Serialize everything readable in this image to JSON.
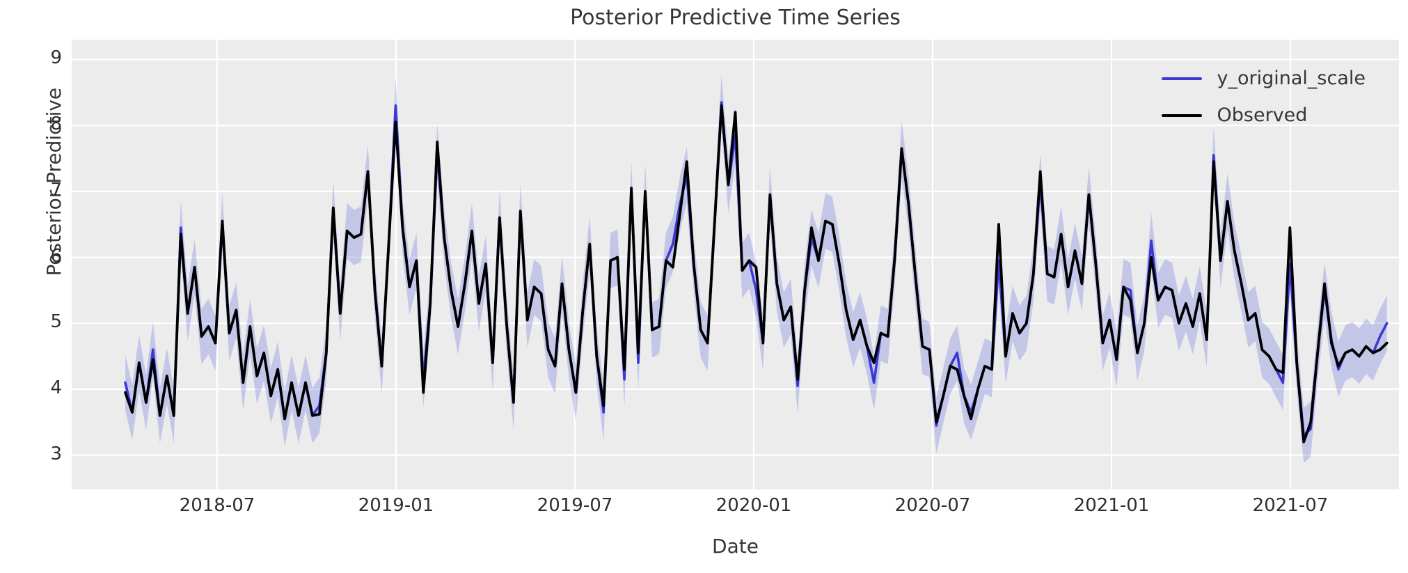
{
  "chart_data": {
    "type": "line",
    "title": "Posterior Predictive Time Series",
    "xlabel": "Date",
    "ylabel": "Posterior Predictive",
    "x_start": "2018-04-01",
    "x_step_days": 7,
    "n_points": 183,
    "ylim": [
      2.48,
      9.3
    ],
    "grid": true,
    "legend_position": "upper right",
    "background_color": "#ececec",
    "grid_color": "#ffffff",
    "ytick_labels": [
      "9",
      "8",
      "7",
      "6",
      "5",
      "4",
      "3"
    ],
    "ytick_values": [
      9,
      8,
      7,
      6,
      5,
      4,
      3
    ],
    "xtick_labels": [
      "2018-07",
      "2019-01",
      "2019-07",
      "2020-01",
      "2020-07",
      "2021-01",
      "2021-07"
    ],
    "band": {
      "around_series": "y_original_scale",
      "halfwidth": 0.42,
      "color": "#5a61dc",
      "opacity": 0.27
    },
    "series": [
      {
        "name": "y_original_scale",
        "color": "#3a3ad3",
        "values": [
          4.1,
          3.65,
          4.4,
          3.8,
          4.6,
          3.6,
          4.2,
          3.6,
          6.45,
          5.15,
          5.85,
          4.8,
          4.95,
          4.7,
          6.55,
          4.85,
          5.2,
          4.1,
          4.95,
          4.2,
          4.55,
          3.9,
          4.3,
          3.55,
          4.1,
          3.6,
          4.1,
          3.6,
          3.75,
          4.55,
          6.75,
          5.15,
          6.4,
          6.3,
          6.35,
          7.3,
          5.5,
          4.35,
          6.2,
          8.3,
          6.45,
          5.55,
          5.95,
          4.15,
          5.3,
          7.6,
          6.3,
          5.5,
          4.95,
          5.6,
          6.4,
          5.3,
          5.9,
          4.4,
          6.6,
          5.0,
          3.8,
          6.7,
          5.05,
          5.55,
          5.45,
          4.6,
          4.35,
          5.6,
          4.6,
          3.95,
          5.2,
          6.2,
          4.5,
          3.65,
          5.95,
          6.0,
          4.15,
          7.05,
          4.4,
          7.0,
          4.9,
          4.95,
          5.95,
          6.2,
          6.8,
          7.25,
          5.9,
          4.9,
          4.7,
          6.5,
          8.35,
          7.1,
          7.85,
          5.8,
          5.95,
          5.5,
          4.7,
          6.95,
          5.6,
          5.05,
          5.25,
          4.05,
          5.5,
          6.3,
          5.95,
          6.55,
          6.5,
          5.9,
          5.2,
          4.75,
          5.05,
          4.65,
          4.1,
          4.85,
          4.8,
          6.0,
          7.65,
          6.8,
          5.7,
          4.65,
          4.6,
          3.45,
          3.9,
          4.35,
          4.55,
          3.9,
          3.65,
          4.0,
          4.35,
          4.3,
          5.95,
          4.5,
          5.15,
          4.85,
          5.0,
          5.75,
          7.15,
          5.75,
          5.7,
          6.35,
          5.55,
          6.1,
          5.6,
          6.95,
          5.9,
          4.7,
          5.05,
          4.45,
          5.55,
          5.5,
          4.55,
          5.0,
          6.25,
          5.35,
          5.55,
          5.5,
          5.0,
          5.3,
          4.95,
          5.45,
          4.75,
          7.55,
          5.95,
          6.85,
          6.1,
          5.6,
          5.05,
          5.15,
          4.6,
          4.5,
          4.3,
          4.1,
          5.9,
          4.4,
          3.3,
          3.4,
          4.55,
          5.5,
          4.75,
          4.3,
          4.55,
          4.6,
          4.5,
          4.65,
          4.55,
          4.8,
          5.0
        ]
      },
      {
        "name": "Observed",
        "color": "#000000",
        "values": [
          3.95,
          3.65,
          4.4,
          3.8,
          4.45,
          3.6,
          4.2,
          3.6,
          6.35,
          5.15,
          5.85,
          4.8,
          4.95,
          4.7,
          6.55,
          4.85,
          5.2,
          4.1,
          4.95,
          4.2,
          4.55,
          3.9,
          4.3,
          3.55,
          4.1,
          3.6,
          4.1,
          3.6,
          3.62,
          4.55,
          6.75,
          5.15,
          6.4,
          6.3,
          6.35,
          7.3,
          5.5,
          4.35,
          6.2,
          8.05,
          6.45,
          5.55,
          5.95,
          3.95,
          5.3,
          7.75,
          6.3,
          5.5,
          4.95,
          5.6,
          6.4,
          5.3,
          5.9,
          4.4,
          6.6,
          5.0,
          3.8,
          6.7,
          5.05,
          5.55,
          5.45,
          4.6,
          4.35,
          5.6,
          4.6,
          3.95,
          5.2,
          6.2,
          4.5,
          3.75,
          5.95,
          6.0,
          4.3,
          7.05,
          4.55,
          7.0,
          4.9,
          4.95,
          5.95,
          5.85,
          6.65,
          7.45,
          5.9,
          4.9,
          4.7,
          6.5,
          8.3,
          7.1,
          8.2,
          5.8,
          5.95,
          5.85,
          4.7,
          6.95,
          5.6,
          5.05,
          5.25,
          4.15,
          5.5,
          6.45,
          5.95,
          6.55,
          6.5,
          5.9,
          5.2,
          4.75,
          5.05,
          4.65,
          4.4,
          4.85,
          4.8,
          6.0,
          7.65,
          6.8,
          5.7,
          4.65,
          4.6,
          3.5,
          3.9,
          4.35,
          4.3,
          3.9,
          3.55,
          4.0,
          4.35,
          4.3,
          6.5,
          4.5,
          5.15,
          4.85,
          5.0,
          5.75,
          7.3,
          5.75,
          5.7,
          6.35,
          5.55,
          6.1,
          5.6,
          6.95,
          5.9,
          4.7,
          5.05,
          4.45,
          5.55,
          5.35,
          4.55,
          5.0,
          6.0,
          5.35,
          5.55,
          5.5,
          5.0,
          5.3,
          4.95,
          5.45,
          4.75,
          7.45,
          5.95,
          6.85,
          6.1,
          5.6,
          5.05,
          5.15,
          4.6,
          4.5,
          4.3,
          4.25,
          6.45,
          4.4,
          3.2,
          3.5,
          4.55,
          5.6,
          4.7,
          4.35,
          4.55,
          4.6,
          4.5,
          4.65,
          4.55,
          4.6,
          4.7
        ]
      }
    ]
  }
}
